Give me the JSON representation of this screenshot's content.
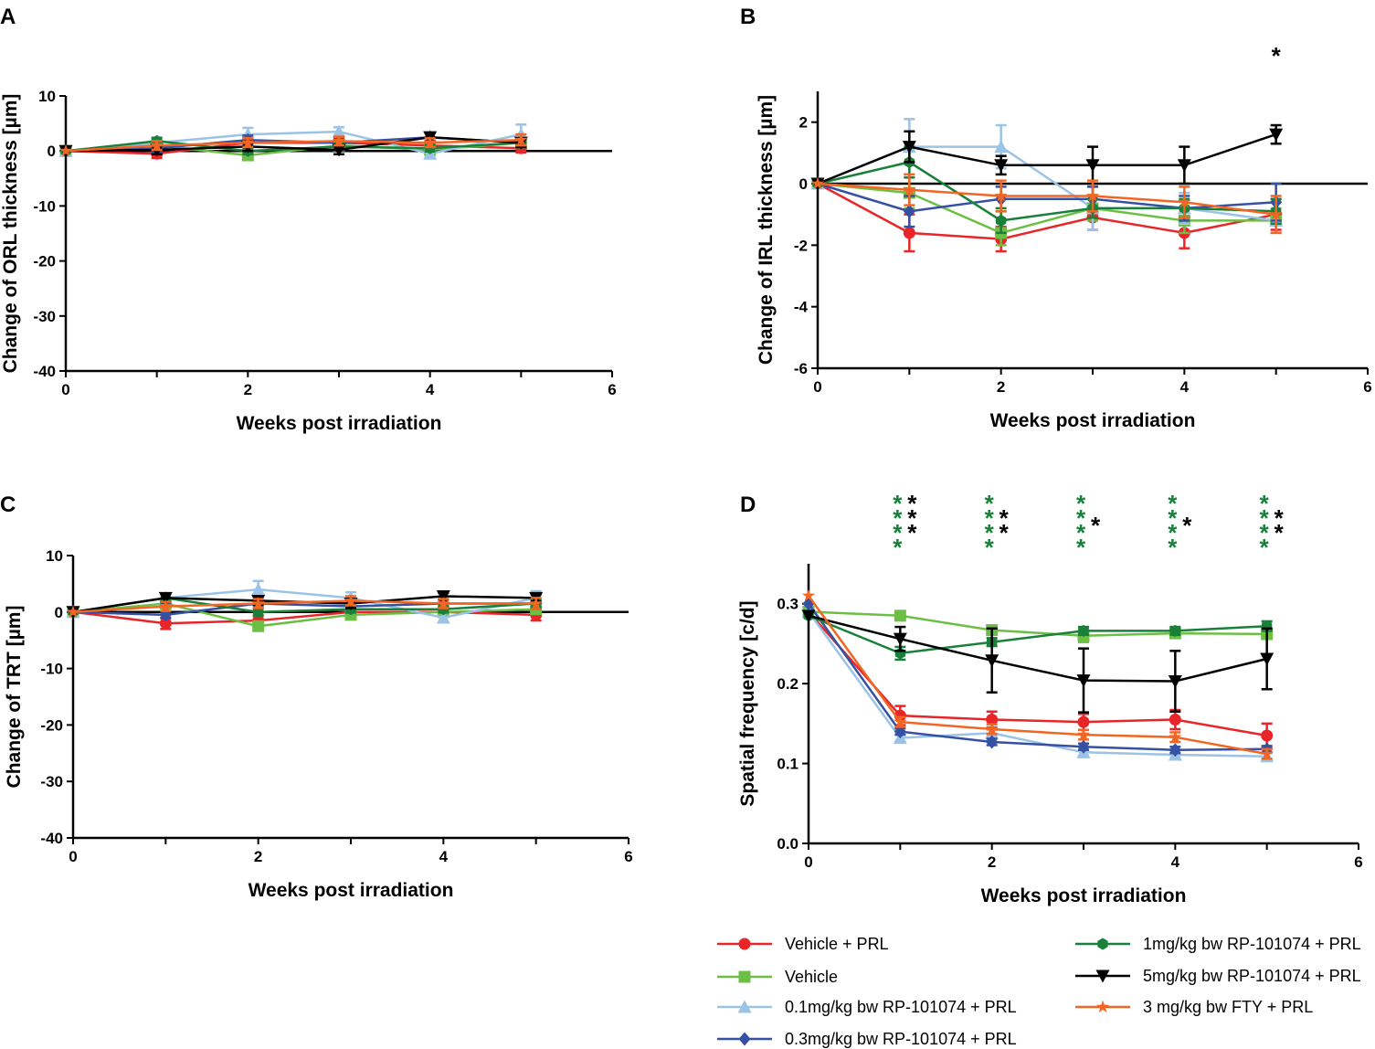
{
  "chart_data": [
    {
      "panel": "A",
      "type": "line",
      "xlabel": "Weeks post irradiation",
      "ylabel": "Change of ORL thickness [µm]",
      "xlim": [
        0,
        6
      ],
      "ylim": [
        -40,
        10
      ],
      "xticks": [
        0,
        2,
        4,
        6
      ],
      "yticks": [
        10,
        0,
        -10,
        -20,
        -30,
        -40
      ],
      "zero_line": true,
      "x": [
        0,
        1,
        2,
        3,
        4,
        5
      ],
      "series": [
        {
          "name": "Vehicle + PRL",
          "values": [
            0,
            -0.5,
            1.5,
            1.5,
            1.0,
            0.5
          ],
          "err": [
            0,
            0.8,
            1.0,
            0.8,
            0.8,
            0.8
          ]
        },
        {
          "name": "Vehicle",
          "values": [
            0,
            1.0,
            -0.8,
            1.0,
            0.2,
            1.5
          ],
          "err": [
            0,
            0.6,
            0.6,
            0.6,
            0.6,
            0.6
          ]
        },
        {
          "name": "0.1mg/kg bw RP-101074 + PRL",
          "values": [
            0,
            1.5,
            3.0,
            3.5,
            -0.5,
            3.0
          ],
          "err": [
            0,
            0.8,
            1.2,
            0.8,
            0.8,
            1.8
          ]
        },
        {
          "name": "0.3mg/kg bw RP-101074 + PRL",
          "values": [
            0,
            0.5,
            2.0,
            1.5,
            2.5,
            1.5
          ],
          "err": [
            0,
            0.6,
            0.8,
            0.6,
            0.8,
            0.8
          ]
        },
        {
          "name": "1mg/kg bw RP-101074 + PRL",
          "values": [
            0,
            1.8,
            0.0,
            0.8,
            0.5,
            1.5
          ],
          "err": [
            0,
            0.6,
            0.6,
            0.6,
            0.6,
            0.6
          ]
        },
        {
          "name": "5mg/kg bw RP-101074 + PRL",
          "values": [
            0,
            0.2,
            0.8,
            0.2,
            2.5,
            1.5
          ],
          "err": [
            0,
            0.8,
            0.8,
            0.8,
            0.8,
            0.8
          ]
        },
        {
          "name": "3 mg/kg bw FTY + PRL",
          "values": [
            0,
            1.0,
            1.5,
            1.8,
            1.5,
            2.0
          ],
          "err": [
            0,
            0.8,
            0.8,
            0.8,
            0.8,
            1.0
          ]
        }
      ]
    },
    {
      "panel": "B",
      "type": "line",
      "xlabel": "Weeks post irradiation",
      "ylabel": "Change of IRL thickness [µm]",
      "xlim": [
        0,
        6
      ],
      "ylim": [
        -6,
        3
      ],
      "xticks": [
        0,
        2,
        4,
        6
      ],
      "yticks": [
        2,
        0,
        -2,
        -4,
        -6
      ],
      "zero_line": true,
      "x": [
        0,
        1,
        2,
        3,
        4,
        5
      ],
      "annotations": [
        {
          "x": 5,
          "text": "*"
        }
      ],
      "series": [
        {
          "name": "Vehicle + PRL",
          "values": [
            0,
            -1.6,
            -1.8,
            -1.1,
            -1.6,
            -1.0
          ],
          "err": [
            0,
            0.6,
            0.4,
            0.4,
            0.5,
            0.5
          ]
        },
        {
          "name": "Vehicle",
          "values": [
            0,
            -0.3,
            -1.6,
            -0.8,
            -1.2,
            -1.2
          ],
          "err": [
            0,
            0.5,
            0.4,
            0.4,
            0.4,
            0.4
          ]
        },
        {
          "name": "0.1mg/kg bw RP-101074 + PRL",
          "values": [
            0,
            1.2,
            1.2,
            -0.8,
            -0.8,
            -1.2
          ],
          "err": [
            0,
            0.9,
            0.7,
            0.7,
            0.5,
            0.4
          ]
        },
        {
          "name": "0.3mg/kg bw RP-101074 + PRL",
          "values": [
            0,
            -0.9,
            -0.5,
            -0.5,
            -0.8,
            -0.6
          ],
          "err": [
            0,
            0.5,
            0.4,
            0.4,
            0.4,
            0.6
          ]
        },
        {
          "name": "1mg/kg bw RP-101074 + PRL",
          "values": [
            0,
            0.7,
            -1.2,
            -0.8,
            -0.8,
            -0.9
          ],
          "err": [
            0,
            0.5,
            0.4,
            0.3,
            0.3,
            0.4
          ]
        },
        {
          "name": "5mg/kg bw RP-101074 + PRL",
          "values": [
            0,
            1.2,
            0.6,
            0.6,
            0.6,
            1.6
          ],
          "err": [
            0,
            0.5,
            0.3,
            0.6,
            0.6,
            0.3
          ]
        },
        {
          "name": "3 mg/kg bw FTY + PRL",
          "values": [
            0,
            -0.2,
            -0.4,
            -0.4,
            -0.6,
            -1.0
          ],
          "err": [
            0,
            0.5,
            0.5,
            0.5,
            0.5,
            0.6
          ]
        }
      ]
    },
    {
      "panel": "C",
      "type": "line",
      "xlabel": "Weeks post irradiation",
      "ylabel": "Change of TRT [µm]",
      "xlim": [
        0,
        6
      ],
      "ylim": [
        -40,
        10
      ],
      "xticks": [
        0,
        2,
        4,
        6
      ],
      "yticks": [
        10,
        0,
        -10,
        -20,
        -30,
        -40
      ],
      "zero_line": true,
      "x": [
        0,
        1,
        2,
        3,
        4,
        5
      ],
      "series": [
        {
          "name": "Vehicle + PRL",
          "values": [
            0,
            -2.0,
            -1.5,
            0.0,
            0.0,
            -0.5
          ],
          "err": [
            0,
            1.0,
            0.8,
            0.8,
            0.8,
            1.0
          ]
        },
        {
          "name": "Vehicle",
          "values": [
            0,
            1.5,
            -2.5,
            -0.5,
            0.0,
            0.5
          ],
          "err": [
            0,
            0.8,
            0.8,
            0.6,
            0.6,
            0.6
          ]
        },
        {
          "name": "0.1mg/kg bw RP-101074 + PRL",
          "values": [
            0,
            2.5,
            4.0,
            2.5,
            -1.0,
            2.5
          ],
          "err": [
            0,
            0.8,
            1.5,
            1.0,
            0.8,
            1.2
          ]
        },
        {
          "name": "0.3mg/kg bw RP-101074 + PRL",
          "values": [
            0,
            -0.5,
            1.5,
            1.0,
            1.5,
            1.5
          ],
          "err": [
            0,
            0.6,
            0.8,
            0.6,
            0.8,
            0.8
          ]
        },
        {
          "name": "1mg/kg bw RP-101074 + PRL",
          "values": [
            0,
            2.5,
            0.0,
            0.5,
            0.5,
            1.5
          ],
          "err": [
            0,
            0.8,
            0.6,
            0.6,
            0.6,
            0.6
          ]
        },
        {
          "name": "5mg/kg bw RP-101074 + PRL",
          "values": [
            0,
            2.5,
            2.0,
            1.5,
            2.8,
            2.5
          ],
          "err": [
            0,
            0.8,
            0.8,
            0.8,
            0.6,
            0.6
          ]
        },
        {
          "name": "3 mg/kg bw FTY + PRL",
          "values": [
            0,
            1.0,
            1.5,
            2.0,
            1.5,
            1.5
          ],
          "err": [
            0,
            0.8,
            0.8,
            0.8,
            0.8,
            1.0
          ]
        }
      ]
    },
    {
      "panel": "D",
      "type": "line",
      "xlabel": "Weeks post irradiation",
      "ylabel": "Spatial frequency [c/d]",
      "xlim": [
        0,
        6
      ],
      "ylim": [
        0.0,
        0.35
      ],
      "xticks": [
        0,
        2,
        4,
        6
      ],
      "yticks": [
        "0.3",
        "0.2",
        "0.1",
        "0.0"
      ],
      "zero_line": false,
      "x": [
        0,
        1,
        2,
        3,
        4,
        5
      ],
      "annotations": [
        {
          "x": 1,
          "green": "****",
          "black": "***"
        },
        {
          "x": 2,
          "green": "****",
          "black": "**"
        },
        {
          "x": 3,
          "green": "****",
          "black": "*"
        },
        {
          "x": 4,
          "green": "****",
          "black": "*"
        },
        {
          "x": 5,
          "green": "****",
          "black": "**"
        }
      ],
      "series": [
        {
          "name": "Vehicle + PRL",
          "values": [
            0.29,
            0.16,
            0.155,
            0.152,
            0.155,
            0.135
          ],
          "err": [
            0,
            0.012,
            0.01,
            0.01,
            0.012,
            0.015
          ]
        },
        {
          "name": "Vehicle",
          "values": [
            0.29,
            0.285,
            0.267,
            0.26,
            0.263,
            0.262
          ],
          "err": [
            0,
            0.005,
            0.005,
            0.008,
            0.006,
            0.006
          ]
        },
        {
          "name": "0.1mg/kg bw RP-101074 + PRL",
          "values": [
            0.29,
            0.132,
            0.138,
            0.114,
            0.111,
            0.109
          ],
          "err": [
            0,
            0.004,
            0.004,
            0.004,
            0.004,
            0.004
          ]
        },
        {
          "name": "0.3mg/kg bw RP-101074 + PRL",
          "values": [
            0.3,
            0.14,
            0.127,
            0.121,
            0.117,
            0.118
          ],
          "err": [
            0,
            0.004,
            0.004,
            0.004,
            0.004,
            0.004
          ]
        },
        {
          "name": "1mg/kg bw RP-101074 + PRL",
          "values": [
            0.285,
            0.238,
            0.252,
            0.266,
            0.266,
            0.272
          ],
          "err": [
            0,
            0.008,
            0.005,
            0.005,
            0.005,
            0.006
          ]
        },
        {
          "name": "5mg/kg bw RP-101074 + PRL",
          "values": [
            0.285,
            0.256,
            0.229,
            0.204,
            0.203,
            0.231
          ],
          "err": [
            0,
            0.015,
            0.04,
            0.04,
            0.038,
            0.038
          ]
        },
        {
          "name": "3 mg/kg bw FTY + PRL",
          "values": [
            0.31,
            0.152,
            0.143,
            0.136,
            0.133,
            0.112
          ],
          "err": [
            0,
            0.006,
            0.006,
            0.006,
            0.006,
            0.006
          ]
        }
      ]
    }
  ],
  "legend": [
    {
      "label": "Vehicle + PRL",
      "color": "#e8262a",
      "marker": "circle"
    },
    {
      "label": "Vehicle",
      "color": "#6cbf44",
      "marker": "square"
    },
    {
      "label": "0.1mg/kg bw RP-101074 + PRL",
      "color": "#9bc3e6",
      "marker": "triangle-up"
    },
    {
      "label": "0.3mg/kg bw RP-101074 + PRL",
      "color": "#3650a4",
      "marker": "diamond"
    },
    {
      "label": "1mg/kg bw RP-101074 + PRL",
      "color": "#198039",
      "marker": "hexagon"
    },
    {
      "label": "5mg/kg bw RP-101074 + PRL",
      "color": "#000000",
      "marker": "triangle-down"
    },
    {
      "label": "3 mg/kg bw FTY + PRL",
      "color": "#f26522",
      "marker": "star"
    }
  ],
  "annotation_colors": {
    "green": "#198039",
    "black": "#000000"
  }
}
